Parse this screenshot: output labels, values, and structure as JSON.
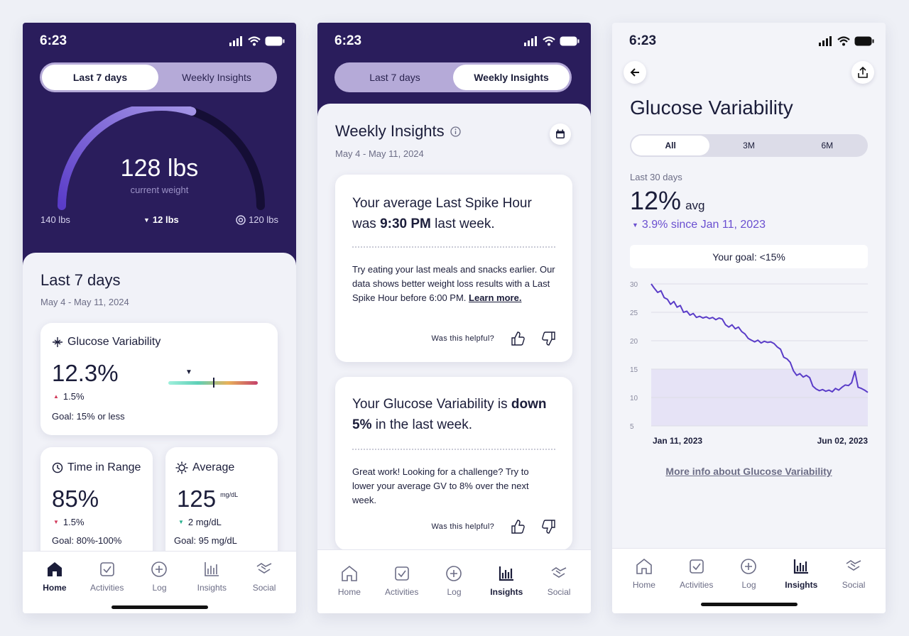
{
  "status": {
    "time": "6:23"
  },
  "tabs": {
    "last7": "Last 7 days",
    "weekly": "Weekly Insights"
  },
  "weight": {
    "value": "128 lbs",
    "label": "current weight",
    "start": "140 lbs",
    "change": "12 lbs",
    "goal": "120 lbs",
    "progress": 0.6
  },
  "summary": {
    "title": "Last 7 days",
    "range": "May 4 - May 11, 2024"
  },
  "gv_card": {
    "title": "Glucose Variability",
    "value": "12.3%",
    "change": "1.5%",
    "goal": "Goal: 15% or less"
  },
  "tir_card": {
    "title": "Time in Range",
    "value": "85%",
    "change": "1.5%",
    "goal": "Goal: 80%-100%"
  },
  "avg_card": {
    "title": "Average",
    "value": "125",
    "unit": "mg/dL",
    "change": "2 mg/dL",
    "goal": "Goal: 95 mg/dL"
  },
  "nav": {
    "home": "Home",
    "activities": "Activities",
    "log": "Log",
    "insights": "Insights",
    "social": "Social"
  },
  "insights": {
    "title": "Weekly Insights",
    "range": "May 4 - May 11, 2024",
    "card1": {
      "h_pre": "Your average Last Spike Hour was ",
      "h_bold": "9:30 PM",
      "h_post": " last week.",
      "body": "Try eating your last meals and snacks earlier. Our data shows better weight loss results with a Last Spike Hour before 6:00 PM. ",
      "link": "Learn more.",
      "helpful": "Was this helpful?"
    },
    "card2": {
      "h_pre": "Your Glucose Variability is ",
      "h_bold": "down 5%",
      "h_post": " in the last week.",
      "body": "Great work! Looking for a challenge? Try to lower your average GV to 8% over the next week.",
      "helpful": "Was this helpful?"
    }
  },
  "detail": {
    "title": "Glucose Variability",
    "ranges": [
      "All",
      "3M",
      "6M"
    ],
    "period": "Last 30 days",
    "avg_value": "12%",
    "avg_label": "avg",
    "delta": "3.9% since Jan 11, 2023",
    "goal": "Your goal: <15%",
    "x_start": "Jan 11, 2023",
    "x_end": "Jun 02, 2023",
    "more_link": "More info about Glucose Variability"
  },
  "chart_data": {
    "type": "line",
    "ylim": [
      5,
      30
    ],
    "yticks": [
      30,
      25,
      20,
      15,
      10,
      5
    ],
    "goal_band": [
      5,
      15
    ],
    "series": [
      {
        "values": [
          30,
          29.2,
          28.5,
          28.8,
          27.6,
          27.3,
          26.4,
          26.9,
          25.9,
          26.2,
          25,
          25.2,
          24.5,
          24.8,
          24.1,
          24.3,
          24,
          24.2,
          23.9,
          24.1,
          23.7,
          24,
          23.8,
          22.8,
          22.4,
          22.8,
          22.1,
          22.4,
          21.6,
          21.2,
          20.4,
          20.1,
          19.8,
          20.1,
          19.6,
          19.9,
          19.7,
          19.8,
          19.5,
          18.9,
          18.5,
          17.1,
          16.8,
          16.2,
          14.7,
          13.9,
          14.2,
          13.6,
          13.9,
          13.5,
          12,
          11.5,
          11.2,
          11.4,
          11.1,
          11.3,
          11,
          11.6,
          11.3,
          11.8,
          12.2,
          12.1,
          12.6,
          14.6,
          11.8,
          11.6,
          11.3,
          10.9
        ]
      }
    ]
  },
  "colors": {
    "primary": "#2a1d5c",
    "accent": "#6a4fd0",
    "down": "#d2395a",
    "up": "#27b08d"
  }
}
